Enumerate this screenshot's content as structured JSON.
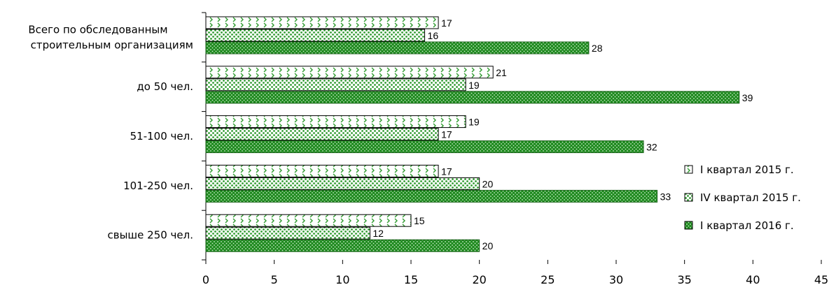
{
  "chart_data": {
    "type": "bar",
    "orientation": "horizontal",
    "categories": [
      [
        "Всего по обследованным",
        "строительным организациям"
      ],
      [
        "до 50 чел."
      ],
      [
        "51-100 чел."
      ],
      [
        "101-250 чел."
      ],
      [
        "свыше 250 чел."
      ]
    ],
    "series": [
      {
        "name": "I квартал 2015 г.",
        "values": [
          17,
          21,
          19,
          17,
          15
        ],
        "pattern": "chevron",
        "color": "#2e9a2e"
      },
      {
        "name": "IV квартал 2015 г.",
        "values": [
          16,
          19,
          17,
          20,
          12
        ],
        "pattern": "dots",
        "color": "#2e9a2e"
      },
      {
        "name": "I квартал 2016 г.",
        "values": [
          28,
          39,
          32,
          33,
          20
        ],
        "pattern": "dense",
        "color": "#1f8a1f"
      }
    ],
    "data_labels": [
      [
        "17",
        "21",
        "19",
        "17",
        "15"
      ],
      [
        "16",
        "19",
        "17",
        "20",
        "12"
      ],
      [
        "28",
        "39",
        "32",
        "33",
        "20"
      ]
    ],
    "xlim": [
      0,
      45
    ],
    "xticks": [
      0,
      5,
      10,
      15,
      20,
      25,
      30,
      35,
      40,
      45
    ],
    "xtick_labels": [
      "0",
      "5",
      "10",
      "15",
      "20",
      "25",
      "30",
      "35",
      "40",
      "45"
    ],
    "legend_position": "right",
    "grid": false
  }
}
